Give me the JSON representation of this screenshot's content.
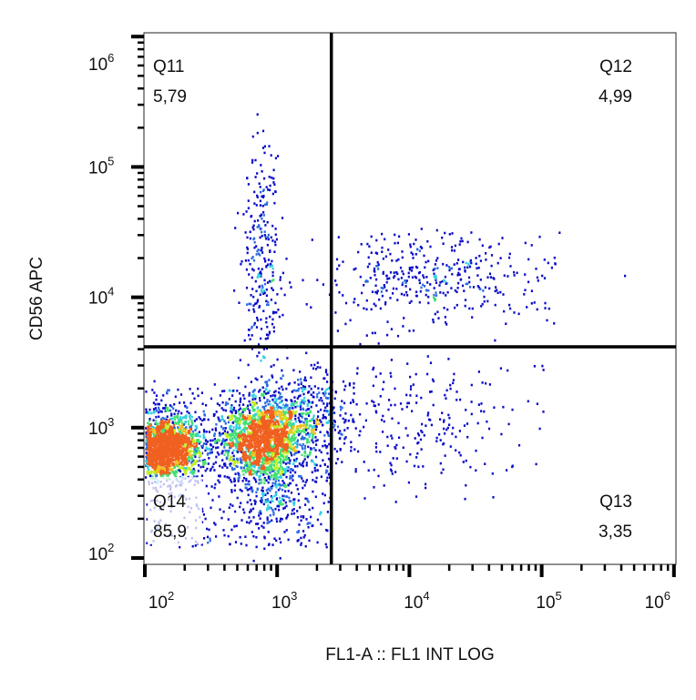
{
  "chart_data": {
    "type": "scatter",
    "subtype": "flow-cytometry-density-dot-plot",
    "xlabel": "FL1-A :: FL1 INT LOG",
    "ylabel": "CD56 APC",
    "x_scale": "log",
    "y_scale": "log",
    "xlim": [
      100,
      1000000
    ],
    "ylim": [
      90,
      1000000
    ],
    "x_ticks": [
      {
        "base": "10",
        "exp": "2",
        "value": 100
      },
      {
        "base": "10",
        "exp": "3",
        "value": 1000
      },
      {
        "base": "10",
        "exp": "4",
        "value": 10000
      },
      {
        "base": "10",
        "exp": "5",
        "value": 100000
      },
      {
        "base": "10",
        "exp": "6",
        "value": 1000000
      }
    ],
    "y_ticks": [
      {
        "base": "10",
        "exp": "2",
        "value": 100
      },
      {
        "base": "10",
        "exp": "3",
        "value": 1000
      },
      {
        "base": "10",
        "exp": "4",
        "value": 10000
      },
      {
        "base": "10",
        "exp": "5",
        "value": 100000
      },
      {
        "base": "10",
        "exp": "6",
        "value": 1000000
      }
    ],
    "quadrant_gate": {
      "x": 2570,
      "y": 4170
    },
    "quadrants": [
      {
        "name": "Q11",
        "value": "5,79",
        "position": "top-left"
      },
      {
        "name": "Q12",
        "value": "4,99",
        "position": "top-right"
      },
      {
        "name": "Q13",
        "value": "3,35",
        "position": "bottom-right"
      },
      {
        "name": "Q14",
        "value": "85,9",
        "position": "bottom-left"
      }
    ],
    "density_colors": [
      "#0a0ac8",
      "#2a6ae0",
      "#30d0e0",
      "#40e070",
      "#c0f020",
      "#f0c020",
      "#f06020"
    ],
    "grid": false
  }
}
